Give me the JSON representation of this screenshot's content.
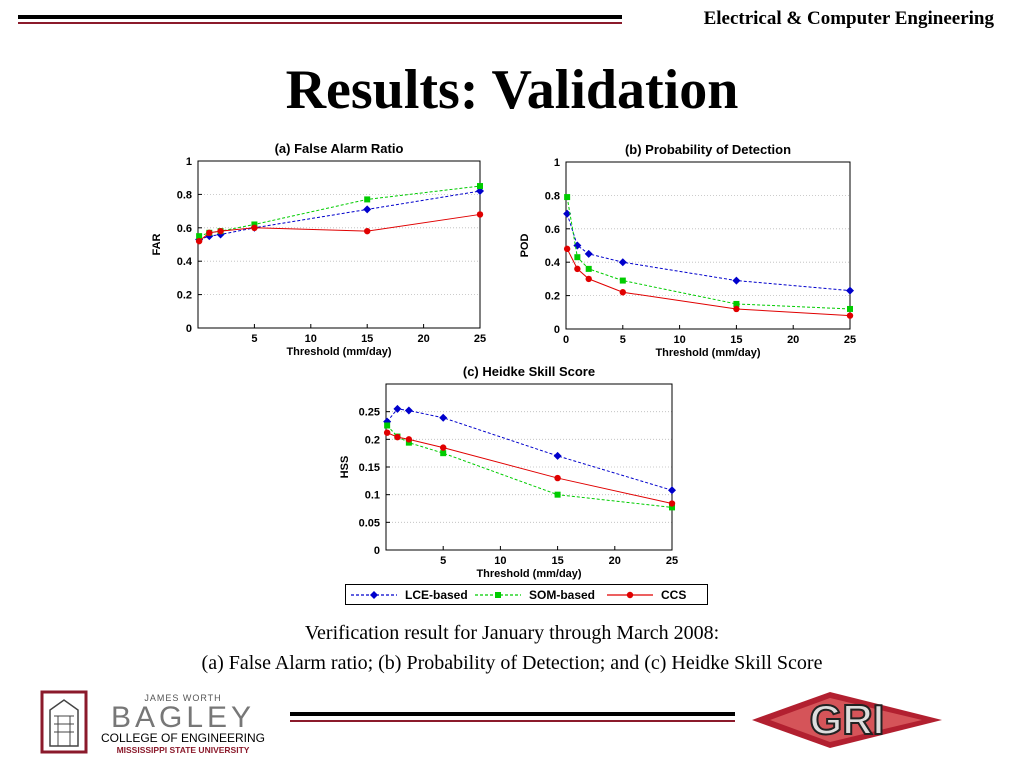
{
  "header": {
    "department": "Electrical & Computer Engineering"
  },
  "slide": {
    "title": "Results: Validation"
  },
  "caption": {
    "line1": "Verification result for January through March 2008:",
    "line2": "(a) False Alarm ratio; (b) Probability of Detection; and (c) Heidke Skill Score"
  },
  "logos": {
    "bagley": {
      "top": "JAMES WORTH",
      "name": "BAGLEY",
      "college": "COLLEGE OF ENGINEERING",
      "university": "MISSISSIPPI STATE UNIVERSITY"
    },
    "gri": {
      "text": "GRI"
    }
  },
  "colors": {
    "lce": "#0000cc",
    "som": "#00cc00",
    "ccs": "#e00000",
    "maroon": "#8b1a2b"
  },
  "legend": [
    {
      "name": "LCE-based",
      "color": "#0000cc",
      "marker": "diamond",
      "dash": true
    },
    {
      "name": "SOM-based",
      "color": "#00cc00",
      "marker": "square",
      "dash": true
    },
    {
      "name": "CCS",
      "color": "#e00000",
      "marker": "circle",
      "dash": false
    }
  ],
  "chart_data": [
    {
      "type": "line",
      "title": "(a) False Alarm Ratio",
      "xlabel": "Threshold (mm/day)",
      "ylabel": "FAR",
      "xlim": [
        0,
        25
      ],
      "ylim": [
        0,
        1
      ],
      "xticks": [
        5,
        10,
        15,
        20,
        25
      ],
      "yticks": [
        0,
        0.2,
        0.4,
        0.6,
        0.8,
        1
      ],
      "ytick_labels": [
        "0",
        "0.2",
        "0.4",
        "0.6",
        "0.8",
        "1"
      ],
      "series": [
        {
          "name": "LCE-based",
          "x": [
            0.1,
            1,
            2,
            5,
            15,
            25
          ],
          "y": [
            0.53,
            0.55,
            0.56,
            0.6,
            0.71,
            0.82
          ]
        },
        {
          "name": "SOM-based",
          "x": [
            0.1,
            1,
            2,
            5,
            15,
            25
          ],
          "y": [
            0.55,
            0.57,
            0.58,
            0.62,
            0.77,
            0.85
          ]
        },
        {
          "name": "CCS",
          "x": [
            0.1,
            1,
            2,
            5,
            15,
            25
          ],
          "y": [
            0.52,
            0.57,
            0.58,
            0.6,
            0.58,
            0.68
          ]
        }
      ]
    },
    {
      "type": "line",
      "title": "(b) Probability of Detection",
      "xlabel": "Threshold (mm/day)",
      "ylabel": "POD",
      "xlim": [
        0,
        25
      ],
      "ylim": [
        0,
        1
      ],
      "xticks": [
        0,
        5,
        10,
        15,
        20,
        25
      ],
      "yticks": [
        0,
        0.2,
        0.4,
        0.6,
        0.8,
        1
      ],
      "ytick_labels": [
        "0",
        "0.2",
        "0.4",
        "0.6",
        "0.8",
        "1"
      ],
      "series": [
        {
          "name": "LCE-based",
          "x": [
            0.1,
            1,
            2,
            5,
            15,
            25
          ],
          "y": [
            0.69,
            0.5,
            0.45,
            0.4,
            0.29,
            0.23
          ]
        },
        {
          "name": "SOM-based",
          "x": [
            0.1,
            1,
            2,
            5,
            15,
            25
          ],
          "y": [
            0.79,
            0.43,
            0.36,
            0.29,
            0.15,
            0.12
          ]
        },
        {
          "name": "CCS",
          "x": [
            0.1,
            1,
            2,
            5,
            15,
            25
          ],
          "y": [
            0.48,
            0.36,
            0.3,
            0.22,
            0.12,
            0.08
          ]
        }
      ]
    },
    {
      "type": "line",
      "title": "(c) Heidke Skill Score",
      "xlabel": "Threshold (mm/day)",
      "ylabel": "HSS",
      "xlim": [
        0,
        25
      ],
      "ylim": [
        0,
        0.3
      ],
      "xticks": [
        5,
        10,
        15,
        20,
        25
      ],
      "yticks": [
        0,
        0.05,
        0.1,
        0.15,
        0.2,
        0.25
      ],
      "ytick_labels": [
        "0",
        "0.05",
        "0.1",
        "0.15",
        "0.2",
        "0.25"
      ],
      "series": [
        {
          "name": "LCE-based",
          "x": [
            0.1,
            1,
            2,
            5,
            15,
            25
          ],
          "y": [
            0.232,
            0.255,
            0.252,
            0.239,
            0.17,
            0.108
          ]
        },
        {
          "name": "SOM-based",
          "x": [
            0.1,
            1,
            2,
            5,
            15,
            25
          ],
          "y": [
            0.225,
            0.205,
            0.194,
            0.175,
            0.1,
            0.077
          ]
        },
        {
          "name": "CCS",
          "x": [
            0.1,
            1,
            2,
            5,
            15,
            25
          ],
          "y": [
            0.212,
            0.204,
            0.2,
            0.185,
            0.13,
            0.084
          ]
        }
      ]
    }
  ]
}
